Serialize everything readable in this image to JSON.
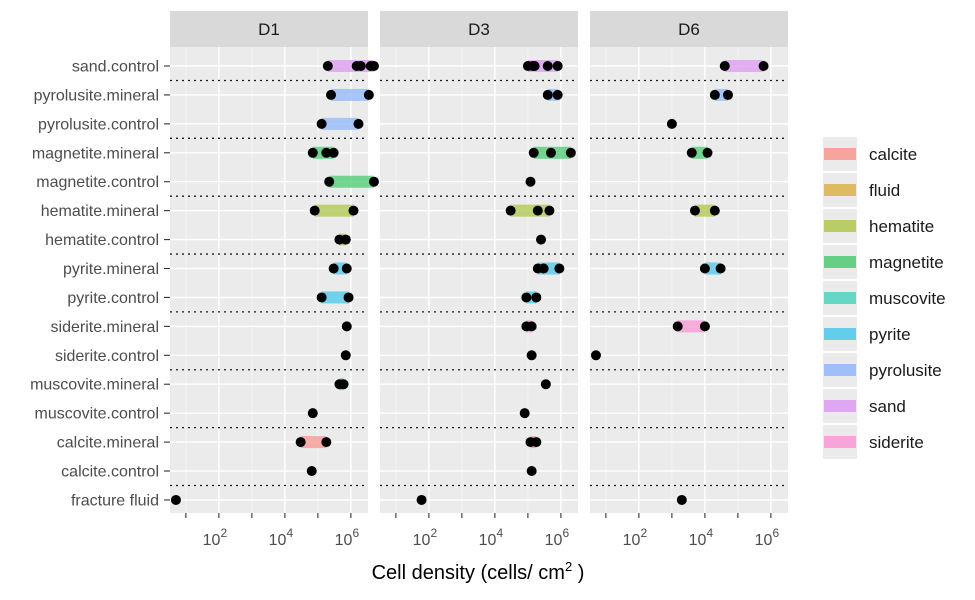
{
  "chart_data": {
    "type": "dumbbell",
    "xlabel": "Cell density (cells/ cm",
    "xlabel_superscript": "2",
    "xlabel_suffix": " )",
    "x_scale": "log10",
    "xlim": [
      3.3,
      3300000
    ],
    "x_ticks": [
      {
        "value": 100,
        "base": "10",
        "exp": "2"
      },
      {
        "value": 10000,
        "base": "10",
        "exp": "4"
      },
      {
        "value": 1000000,
        "base": "10",
        "exp": "6"
      }
    ],
    "grid": true,
    "legend_position": "right",
    "categories": [
      "sand.control",
      "pyrolusite.mineral",
      "pyrolusite.control",
      "magnetite.mineral",
      "magnetite.control",
      "hematite.mineral",
      "hematite.control",
      "pyrite.mineral",
      "pyrite.control",
      "siderite.mineral",
      "siderite.control",
      "muscovite.mineral",
      "muscovite.control",
      "calcite.mineral",
      "calcite.control",
      "fracture fluid"
    ],
    "separators_after": [
      "sand.control",
      "pyrolusite.control",
      "magnetite.control",
      "hematite.control",
      "pyrite.control",
      "siderite.control",
      "muscovite.control",
      "calcite.control"
    ],
    "legend": [
      {
        "name": "calcite",
        "color": "#F8A09A"
      },
      {
        "name": "fluid",
        "color": "#DDB75A"
      },
      {
        "name": "hematite",
        "color": "#B5CB5E"
      },
      {
        "name": "magnetite",
        "color": "#5ECF80"
      },
      {
        "name": "muscovite",
        "color": "#5ED6C2"
      },
      {
        "name": "pyrite",
        "color": "#5CCCEB"
      },
      {
        "name": "pyrolusite",
        "color": "#9ABDFA"
      },
      {
        "name": "sand",
        "color": "#DEA3F2"
      },
      {
        "name": "siderite",
        "color": "#F9A0D8"
      }
    ],
    "panels": [
      {
        "name": "D1",
        "rows": [
          {
            "label": "sand.control",
            "material": "sand",
            "points": [
              200000,
              1500000,
              2000000,
              4000000,
              5000000
            ]
          },
          {
            "label": "pyrolusite.mineral",
            "material": "pyrolusite",
            "points": [
              250000,
              3500000
            ]
          },
          {
            "label": "pyrolusite.control",
            "material": "pyrolusite",
            "points": [
              130000,
              1700000
            ]
          },
          {
            "label": "magnetite.mineral",
            "material": "magnetite",
            "points": [
              70000,
              180000,
              300000
            ]
          },
          {
            "label": "magnetite.control",
            "material": "magnetite",
            "points": [
              220000,
              5000000
            ]
          },
          {
            "label": "hematite.mineral",
            "material": "hematite",
            "points": [
              80000,
              1200000
            ]
          },
          {
            "label": "hematite.control",
            "material": "hematite",
            "points": [
              450000,
              700000
            ]
          },
          {
            "label": "pyrite.mineral",
            "material": "pyrite",
            "points": [
              300000,
              750000
            ]
          },
          {
            "label": "pyrite.control",
            "material": "pyrite",
            "points": [
              130000,
              850000
            ]
          },
          {
            "label": "siderite.mineral",
            "material": "siderite",
            "points": [
              750000
            ]
          },
          {
            "label": "siderite.control",
            "material": "siderite",
            "points": [
              700000
            ]
          },
          {
            "label": "muscovite.mineral",
            "material": "muscovite",
            "points": [
              450000,
              600000
            ]
          },
          {
            "label": "muscovite.control",
            "material": "muscovite",
            "points": [
              70000
            ]
          },
          {
            "label": "calcite.mineral",
            "material": "calcite",
            "points": [
              30000,
              180000
            ]
          },
          {
            "label": "calcite.control",
            "material": "calcite",
            "points": [
              65000
            ]
          },
          {
            "label": "fracture fluid",
            "material": "fluid",
            "points": [
              5
            ]
          }
        ]
      },
      {
        "name": "D3",
        "rows": [
          {
            "label": "sand.control",
            "material": "sand",
            "points": [
              100000,
              140000,
              160000,
              400000,
              800000
            ]
          },
          {
            "label": "pyrolusite.mineral",
            "material": "pyrolusite",
            "points": [
              400000,
              800000
            ]
          },
          {
            "label": "pyrolusite.control",
            "material": "pyrolusite",
            "points": []
          },
          {
            "label": "magnetite.mineral",
            "material": "magnetite",
            "points": [
              150000,
              500000,
              2000000
            ]
          },
          {
            "label": "magnetite.control",
            "material": "magnetite",
            "points": [
              120000
            ]
          },
          {
            "label": "hematite.mineral",
            "material": "hematite",
            "points": [
              30000,
              200000,
              450000
            ]
          },
          {
            "label": "hematite.control",
            "material": "hematite",
            "points": [
              250000
            ]
          },
          {
            "label": "pyrite.mineral",
            "material": "pyrite",
            "points": [
              200000,
              300000,
              900000
            ]
          },
          {
            "label": "pyrite.control",
            "material": "pyrite",
            "points": [
              90000,
              180000
            ]
          },
          {
            "label": "siderite.mineral",
            "material": "siderite",
            "points": [
              90000,
              130000
            ]
          },
          {
            "label": "siderite.control",
            "material": "siderite",
            "points": [
              130000
            ]
          },
          {
            "label": "muscovite.mineral",
            "material": "muscovite",
            "points": [
              350000
            ]
          },
          {
            "label": "muscovite.control",
            "material": "muscovite",
            "points": [
              80000
            ]
          },
          {
            "label": "calcite.mineral",
            "material": "calcite",
            "points": [
              120000,
              180000
            ]
          },
          {
            "label": "calcite.control",
            "material": "calcite",
            "points": [
              130000
            ]
          },
          {
            "label": "fracture fluid",
            "material": "fluid",
            "points": [
              60
            ]
          }
        ]
      },
      {
        "name": "D6",
        "rows": [
          {
            "label": "sand.control",
            "material": "sand",
            "points": [
              40000,
              600000
            ]
          },
          {
            "label": "pyrolusite.mineral",
            "material": "pyrolusite",
            "points": [
              20000,
              50000
            ]
          },
          {
            "label": "pyrolusite.control",
            "material": "pyrolusite",
            "points": [
              1000
            ]
          },
          {
            "label": "magnetite.mineral",
            "material": "magnetite",
            "points": [
              4000,
              12000
            ]
          },
          {
            "label": "magnetite.control",
            "material": "magnetite",
            "points": []
          },
          {
            "label": "hematite.mineral",
            "material": "hematite",
            "points": [
              5000,
              20000
            ]
          },
          {
            "label": "hematite.control",
            "material": "hematite",
            "points": []
          },
          {
            "label": "pyrite.mineral",
            "material": "pyrite",
            "points": [
              10000,
              30000
            ]
          },
          {
            "label": "pyrite.control",
            "material": "pyrite",
            "points": []
          },
          {
            "label": "siderite.mineral",
            "material": "siderite",
            "points": [
              1500,
              10000
            ]
          },
          {
            "label": "siderite.control",
            "material": "siderite",
            "points": [
              5
            ]
          },
          {
            "label": "muscovite.mineral",
            "material": "muscovite",
            "points": []
          },
          {
            "label": "muscovite.control",
            "material": "muscovite",
            "points": []
          },
          {
            "label": "calcite.mineral",
            "material": "calcite",
            "points": []
          },
          {
            "label": "calcite.control",
            "material": "calcite",
            "points": []
          },
          {
            "label": "fracture fluid",
            "material": "fluid",
            "points": [
              2000
            ]
          }
        ]
      }
    ]
  }
}
